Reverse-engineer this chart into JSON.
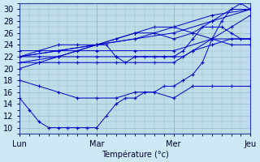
{
  "xlabel": "Température (°c)",
  "bg_color": "#cce8f4",
  "plot_bg_color": "#c0dce8",
  "grid_color": "#99bbcc",
  "line_color": "#0000cc",
  "marker_color": "#0000cc",
  "ylim": [
    9,
    31
  ],
  "yticks": [
    10,
    12,
    14,
    16,
    18,
    20,
    22,
    24,
    26,
    28,
    30
  ],
  "day_labels": [
    "Lun",
    "Mar",
    "Mer",
    "Jeu"
  ],
  "day_positions": [
    0,
    48,
    96,
    144
  ],
  "curves": [
    {
      "x": [
        0,
        6,
        12,
        18,
        24,
        30,
        36,
        42,
        48,
        54,
        60,
        66,
        72,
        78,
        84,
        90,
        96,
        102,
        108,
        114,
        120,
        126,
        132,
        138,
        144
      ],
      "y": [
        15,
        13,
        11,
        10,
        10,
        10,
        10,
        10,
        10,
        12,
        14,
        15,
        15,
        16,
        16,
        17,
        17,
        18,
        19,
        21,
        25,
        28,
        30,
        31,
        30
      ]
    },
    {
      "x": [
        0,
        12,
        24,
        36,
        48,
        60,
        72,
        84,
        96,
        108,
        120,
        132,
        144
      ],
      "y": [
        18,
        17,
        16,
        15,
        15,
        15,
        16,
        16,
        15,
        17,
        17,
        17,
        17
      ]
    },
    {
      "x": [
        0,
        12,
        24,
        36,
        48,
        60,
        72,
        84,
        96,
        108,
        120,
        132,
        144
      ],
      "y": [
        21,
        21,
        21,
        21,
        21,
        21,
        21,
        21,
        21,
        23,
        25,
        27,
        29
      ]
    },
    {
      "x": [
        0,
        12,
        24,
        36,
        48,
        60,
        72,
        84,
        90,
        96,
        102,
        108,
        114,
        120,
        126,
        132,
        138,
        144
      ],
      "y": [
        22,
        22,
        22,
        22,
        22,
        22,
        22,
        22,
        22,
        22,
        23,
        25,
        27,
        27,
        27,
        26,
        25,
        25
      ]
    },
    {
      "x": [
        0,
        24,
        48,
        72,
        96,
        120,
        144
      ],
      "y": [
        23,
        23,
        23,
        23,
        23,
        25,
        25
      ]
    },
    {
      "x": [
        0,
        12,
        24,
        36,
        48,
        54,
        60,
        66,
        72,
        78,
        84,
        90,
        96,
        102,
        108,
        120,
        132,
        144
      ],
      "y": [
        22,
        23,
        24,
        24,
        24,
        24,
        22,
        21,
        22,
        22,
        22,
        22,
        22,
        22,
        23,
        24,
        25,
        25
      ]
    },
    {
      "x": [
        0,
        24,
        48,
        72,
        84,
        96,
        108,
        120,
        132,
        144
      ],
      "y": [
        21,
        22,
        24,
        26,
        27,
        27,
        26,
        25,
        24,
        24
      ]
    },
    {
      "x": [
        0,
        12,
        24,
        36,
        48,
        60,
        72,
        84,
        96,
        108,
        120,
        132,
        144
      ],
      "y": [
        20,
        21,
        22,
        23,
        24,
        25,
        26,
        26,
        25,
        26,
        28,
        30,
        30
      ]
    },
    {
      "x": [
        0,
        24,
        48,
        72,
        96,
        120,
        144
      ],
      "y": [
        22,
        23,
        24,
        25,
        26,
        28,
        30
      ]
    },
    {
      "x": [
        0,
        24,
        48,
        72,
        96,
        120,
        144
      ],
      "y": [
        22,
        23,
        24,
        25,
        27,
        29,
        30
      ]
    }
  ]
}
